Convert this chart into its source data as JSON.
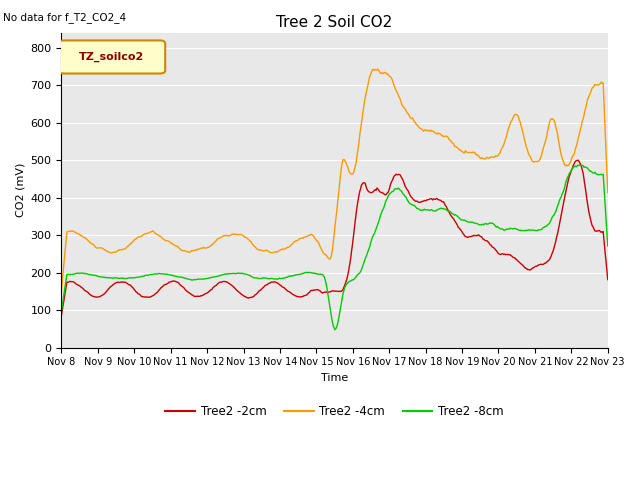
{
  "title": "Tree 2 Soil CO2",
  "subtitle": "No data for f_T2_CO2_4",
  "xlabel": "Time",
  "ylabel": "CO2 (mV)",
  "ylim": [
    0,
    840
  ],
  "yticks": [
    0,
    100,
    200,
    300,
    400,
    500,
    600,
    700,
    800
  ],
  "bg_color": "#e8e8e8",
  "fig_color": "#ffffff",
  "legend_label": "TZ_soilco2",
  "legend_bg": "#ffffcc",
  "legend_border": "#cc8800",
  "series_colors": {
    "2cm": "#cc0000",
    "4cm": "#ff9900",
    "8cm": "#00cc00"
  },
  "series_labels": {
    "2cm": "Tree2 -2cm",
    "4cm": "Tree2 -4cm",
    "8cm": "Tree2 -8cm"
  },
  "xtick_labels": [
    "Nov 8",
    "Nov 9",
    "Nov 10",
    "Nov 11",
    "Nov 12",
    "Nov 13",
    "Nov 14",
    "Nov 15",
    "Nov 16",
    "Nov 17",
    "Nov 18",
    "Nov 19",
    "Nov 20",
    "Nov 21",
    "Nov 22",
    "Nov 23"
  ]
}
